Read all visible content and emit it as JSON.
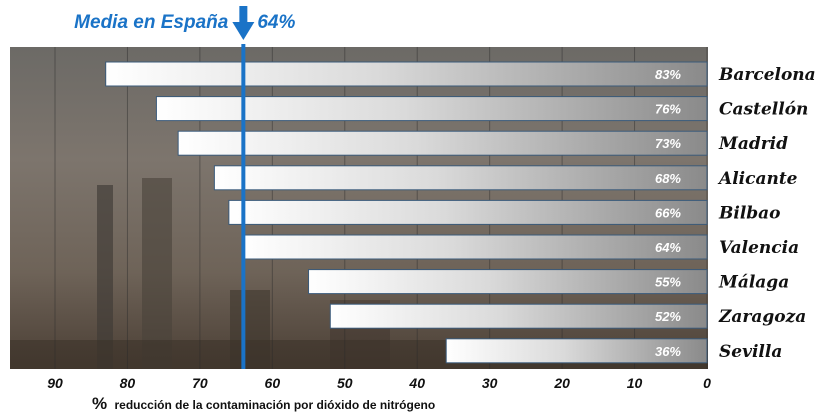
{
  "chart_data": {
    "type": "bar",
    "orientation": "horizontal",
    "title": "",
    "xlabel_symbol": "%",
    "xlabel": "reducción de la contaminación por dióxido de nitrógeno",
    "ylabel": "",
    "xlim": [
      90,
      0
    ],
    "x_reversed": true,
    "x_ticks": [
      "90",
      "80",
      "70",
      "60",
      "50",
      "40",
      "30",
      "20",
      "10",
      "0"
    ],
    "categories": [
      "Barcelona",
      "Castellón",
      "Madrid",
      "Alicante",
      "Bilbao",
      "Valencia",
      "Málaga",
      "Zaragoza",
      "Sevilla"
    ],
    "values": [
      83,
      76,
      73,
      68,
      66,
      64,
      55,
      52,
      36
    ],
    "value_labels": [
      "83%",
      "76%",
      "73%",
      "68%",
      "66%",
      "64%",
      "55%",
      "52%",
      "36%"
    ],
    "reference_line": {
      "label": "Media en España",
      "value": 64,
      "value_label": "64%",
      "color": "#1a73c7"
    },
    "grid": true,
    "colors": {
      "bar_light": "#ffffff",
      "bar_dark": "#8a8a8a",
      "bar_border": "#3a5a7a",
      "reference": "#1a73c7"
    }
  }
}
